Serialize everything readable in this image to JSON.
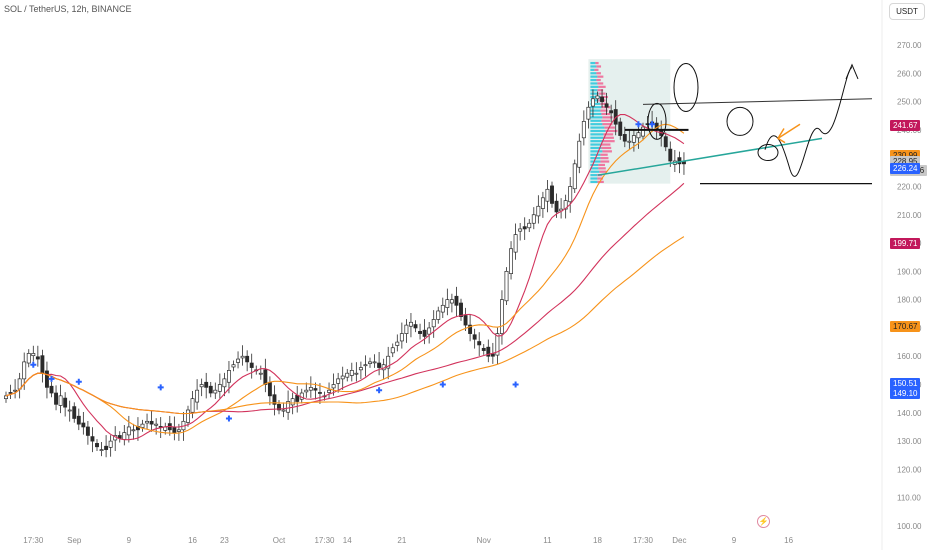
{
  "header": {
    "symbol_title": "SOL / TetherUS, 12h, BINANCE",
    "currency_button": "USDT"
  },
  "colors": {
    "up_candle": "#2b2b2b",
    "down_candle": "#2b2b2b",
    "ma_fast": "#d2335c",
    "ma_slow": "#f7931a",
    "crossover_marker": "#2962ff",
    "trendline_green": "#26a69a",
    "volume_profile_up": "#26c6da",
    "volume_profile_down": "#f06292",
    "range_box": "#cfe3e0"
  },
  "price_badges": [
    {
      "label": "241.67",
      "bg": "#c2185b",
      "fg": "#ffffff"
    },
    {
      "label": "230.99",
      "bg": "#f7931a",
      "fg": "#222222"
    },
    {
      "label": "228.95",
      "bg": "#c8c8c8",
      "fg": "#222222"
    },
    {
      "label": "07:41:16",
      "bg": "#c8c8c8",
      "fg": "#222222"
    },
    {
      "label": "226.24",
      "bg": "#2962ff",
      "fg": "#ffffff"
    },
    {
      "label": "199.71",
      "bg": "#c2185b",
      "fg": "#ffffff"
    },
    {
      "label": "170.67",
      "bg": "#f7931a",
      "fg": "#222222"
    },
    {
      "label": "150.51",
      "bg": "#2962ff",
      "fg": "#ffffff"
    },
    {
      "label": "149.10",
      "bg": "#2962ff",
      "fg": "#ffffff"
    }
  ],
  "lightning_icon": "lightning-icon",
  "chart_data": {
    "type": "candlestick",
    "ylim": [
      100,
      270
    ],
    "y_ticks": [
      "270.00",
      "260.00",
      "250.00",
      "240.00",
      "220.00",
      "210.00",
      "200.00",
      "190.00",
      "180.00",
      "170.00",
      "160.00",
      "150.00",
      "140.00",
      "130.00",
      "120.00",
      "110.00",
      "100.00"
    ],
    "y_tick_values": [
      270,
      260,
      250,
      240,
      220,
      210,
      200,
      190,
      180,
      170,
      160,
      150,
      140,
      130,
      120,
      110,
      100
    ],
    "x_ticks": [
      {
        "label": "17:30",
        "i": 6
      },
      {
        "label": "Sep",
        "i": 15
      },
      {
        "label": "9",
        "i": 27
      },
      {
        "label": "16",
        "i": 41
      },
      {
        "label": "23",
        "i": 48
      },
      {
        "label": "Oct",
        "i": 60
      },
      {
        "label": "17:30",
        "i": 70
      },
      {
        "label": "14",
        "i": 75
      },
      {
        "label": "21",
        "i": 87
      },
      {
        "label": "Nov",
        "i": 105
      },
      {
        "label": "11",
        "i": 119
      },
      {
        "label": "18",
        "i": 130
      },
      {
        "label": "17:30",
        "i": 140
      },
      {
        "label": "Dec",
        "i": 148
      },
      {
        "label": "9",
        "i": 160
      },
      {
        "label": "16",
        "i": 172
      }
    ],
    "x_count": 183,
    "closes": [
      146,
      147,
      148,
      152,
      158,
      161,
      161,
      159,
      154,
      149,
      147,
      143,
      146,
      142,
      141,
      138,
      136,
      135,
      132,
      130,
      128,
      127,
      127,
      130,
      132,
      131,
      133,
      135,
      134,
      134,
      136,
      137,
      136,
      136,
      135,
      135,
      134,
      133,
      134,
      137,
      141,
      145,
      148,
      150,
      149,
      147,
      148,
      150,
      152,
      155,
      157,
      159,
      160,
      158,
      156,
      155,
      154,
      150,
      146,
      143,
      141,
      141,
      144,
      145,
      144,
      147,
      148,
      149,
      148,
      147,
      146,
      148,
      150,
      152,
      153,
      154,
      155,
      154,
      156,
      157,
      158,
      158,
      156,
      157,
      160,
      163,
      165,
      168,
      171,
      172,
      170,
      168,
      167,
      170,
      173,
      176,
      178,
      180,
      180,
      178,
      174,
      171,
      168,
      166,
      164,
      162,
      160,
      160,
      168,
      180,
      190,
      198,
      203,
      205,
      205,
      207,
      210,
      213,
      216,
      219,
      214,
      211,
      212,
      215,
      220,
      228,
      236,
      243,
      248,
      251,
      252,
      250,
      248,
      246,
      242,
      238,
      236,
      236,
      238,
      239,
      241,
      242,
      242,
      240,
      238,
      234,
      229,
      229,
      228,
      228
    ]
  }
}
